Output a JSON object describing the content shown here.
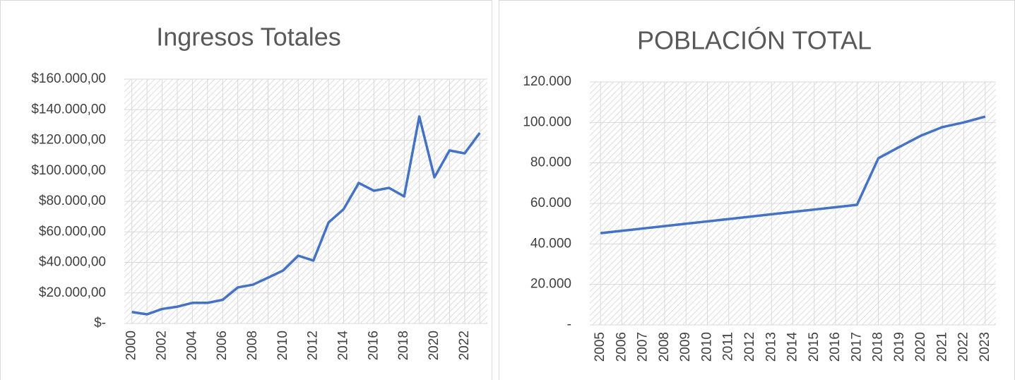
{
  "chart_data": [
    {
      "type": "line",
      "title": "Ingresos Totales",
      "categories": [
        "2000",
        null,
        "2002",
        null,
        "2004",
        null,
        "2006",
        null,
        "2008",
        null,
        "2010",
        null,
        "2012",
        null,
        "2014",
        null,
        "2016",
        null,
        "2018",
        null,
        "2020",
        null,
        "2022",
        null
      ],
      "series": [
        {
          "name": "Ingresos Totales",
          "color": "#4472c4",
          "values": [
            7500,
            6000,
            9500,
            11000,
            13500,
            13500,
            15500,
            23600,
            25400,
            30000,
            34700,
            44400,
            41200,
            66100,
            74900,
            92000,
            86900,
            88800,
            83200,
            135500,
            95700,
            113300,
            111400,
            124800
          ]
        }
      ],
      "ylim": [
        0,
        160000
      ],
      "yticks": [
        {
          "value": 0,
          "label": "$-"
        },
        {
          "value": 20000,
          "label": "$20.000,00"
        },
        {
          "value": 40000,
          "label": "$40.000,00"
        },
        {
          "value": 60000,
          "label": "$60.000,00"
        },
        {
          "value": 80000,
          "label": "$80.000,00"
        },
        {
          "value": 100000,
          "label": "$100.000,00"
        },
        {
          "value": 120000,
          "label": "$120.000,00"
        },
        {
          "value": 140000,
          "label": "$140.000,00"
        },
        {
          "value": 160000,
          "label": "$160.000,00"
        }
      ],
      "grid": true
    },
    {
      "type": "line",
      "title": "POBLACIÓN TOTAL",
      "categories": [
        "2005",
        "2006",
        "2007",
        "2008",
        "2009",
        "2010",
        "2011",
        "2012",
        "2013",
        "2014",
        "2015",
        "2016",
        "2017",
        "2018",
        "2019",
        "2020",
        "2021",
        "2022",
        "2023"
      ],
      "series": [
        {
          "name": "POBLACIÓN TOTAL",
          "color": "#4472c4",
          "values": [
            45300,
            46470,
            47640,
            48800,
            49970,
            51130,
            52300,
            53470,
            54630,
            55800,
            56970,
            58130,
            59300,
            82300,
            88000,
            93500,
            97700,
            100000,
            102900
          ]
        }
      ],
      "ylim": [
        0,
        120000
      ],
      "yticks": [
        {
          "value": 0,
          "label": "-"
        },
        {
          "value": 20000,
          "label": "20.000"
        },
        {
          "value": 40000,
          "label": "40.000"
        },
        {
          "value": 60000,
          "label": "60.000"
        },
        {
          "value": 80000,
          "label": "80.000"
        },
        {
          "value": 100000,
          "label": "100.000"
        },
        {
          "value": 120000,
          "label": "120.000"
        }
      ],
      "grid": true
    }
  ]
}
